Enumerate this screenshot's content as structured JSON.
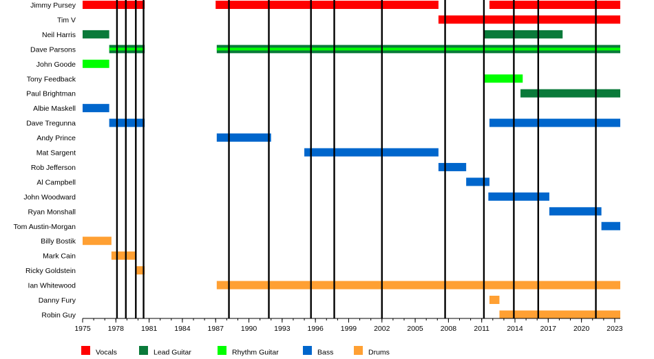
{
  "chart_data": {
    "type": "timeline",
    "title": "",
    "xlabel": "",
    "ylabel": "",
    "xlim": [
      1975,
      2023.5
    ],
    "x_ticks": [
      1975,
      1978,
      1981,
      1984,
      1987,
      1990,
      1993,
      1996,
      1999,
      2002,
      2005,
      2008,
      2011,
      2014,
      2017,
      2020,
      2023
    ],
    "grid": "vertical year lines only",
    "members": [
      "Jimmy Pursey",
      "Tim V",
      "Neil Harris",
      "Dave Parsons",
      "John Goode",
      "Tony Feedback",
      "Paul Brightman",
      "Albie Maskell",
      "Dave Tregunna",
      "Andy Prince",
      "Mat Sargent",
      "Rob Jefferson",
      "Al Campbell",
      "John Woodward",
      "Ryan Monshall",
      "Tom Austin-Morgan",
      "Billy Bostik",
      "Mark Cain",
      "Ricky Goldstein",
      "Ian Whitewood",
      "Danny Fury",
      "Robin Guy"
    ],
    "roles": [
      {
        "name": "Vocals",
        "color": "#ff0000"
      },
      {
        "name": "Lead Guitar",
        "color": "#0a7a3a"
      },
      {
        "name": "Rhythm Guitar",
        "color": "#00ff00"
      },
      {
        "name": "Bass",
        "color": "#0066cc"
      },
      {
        "name": "Drums",
        "color": "#ffa033"
      }
    ],
    "bars": [
      {
        "member": "Jimmy Pursey",
        "role": "Vocals",
        "start": 1975.0,
        "end": 1980.6
      },
      {
        "member": "Jimmy Pursey",
        "role": "Vocals",
        "start": 1987.0,
        "end": 2007.1
      },
      {
        "member": "Jimmy Pursey",
        "role": "Vocals",
        "start": 2011.7,
        "end": 2023.5
      },
      {
        "member": "Tim V",
        "role": "Vocals",
        "start": 2007.1,
        "end": 2023.5
      },
      {
        "member": "Neil Harris",
        "role": "Lead Guitar",
        "start": 1975.0,
        "end": 1977.4
      },
      {
        "member": "Neil Harris",
        "role": "Lead Guitar",
        "start": 2011.2,
        "end": 2018.3
      },
      {
        "member": "Dave Parsons",
        "role": "Lead Guitar",
        "start": 1977.4,
        "end": 1980.6
      },
      {
        "member": "Dave Parsons",
        "role": "Lead Guitar",
        "start": 1987.1,
        "end": 2023.5
      },
      {
        "member": "Dave Parsons",
        "role": "Rhythm Guitar",
        "start": 1977.4,
        "end": 1980.6
      },
      {
        "member": "Dave Parsons",
        "role": "Rhythm Guitar",
        "start": 1987.1,
        "end": 2023.5
      },
      {
        "member": "John Goode",
        "role": "Rhythm Guitar",
        "start": 1975.0,
        "end": 1977.4
      },
      {
        "member": "Tony Feedback",
        "role": "Rhythm Guitar",
        "start": 2011.2,
        "end": 2014.7
      },
      {
        "member": "Paul Brightman",
        "role": "Lead Guitar",
        "start": 2014.5,
        "end": 2023.5
      },
      {
        "member": "Albie Maskell",
        "role": "Bass",
        "start": 1975.0,
        "end": 1977.4
      },
      {
        "member": "Dave Tregunna",
        "role": "Bass",
        "start": 1977.4,
        "end": 1980.6
      },
      {
        "member": "Dave Tregunna",
        "role": "Bass",
        "start": 2011.7,
        "end": 2023.5
      },
      {
        "member": "Andy Prince",
        "role": "Bass",
        "start": 1987.1,
        "end": 1992.0
      },
      {
        "member": "Mat Sargent",
        "role": "Bass",
        "start": 1995.0,
        "end": 2007.1
      },
      {
        "member": "Rob Jefferson",
        "role": "Bass",
        "start": 2007.1,
        "end": 2009.6
      },
      {
        "member": "Al Campbell",
        "role": "Bass",
        "start": 2009.6,
        "end": 2011.7
      },
      {
        "member": "John Woodward",
        "role": "Bass",
        "start": 2011.6,
        "end": 2017.1
      },
      {
        "member": "Ryan Monshall",
        "role": "Bass",
        "start": 2017.1,
        "end": 2021.8
      },
      {
        "member": "Tom Austin-Morgan",
        "role": "Bass",
        "start": 2021.8,
        "end": 2023.5
      },
      {
        "member": "Billy Bostik",
        "role": "Drums",
        "start": 1975.0,
        "end": 1977.6
      },
      {
        "member": "Mark Cain",
        "role": "Drums",
        "start": 1977.6,
        "end": 1979.8
      },
      {
        "member": "Ricky Goldstein",
        "role": "Drums",
        "start": 1979.8,
        "end": 1980.6
      },
      {
        "member": "Ian Whitewood",
        "role": "Drums",
        "start": 1987.1,
        "end": 2023.5
      },
      {
        "member": "Danny Fury",
        "role": "Drums",
        "start": 2011.7,
        "end": 2012.6
      },
      {
        "member": "Robin Guy",
        "role": "Drums",
        "start": 2012.6,
        "end": 2023.5
      }
    ],
    "event_lines": [
      1978.1,
      1978.9,
      1979.8,
      1980.5,
      1988.2,
      1991.8,
      1995.6,
      1997.7,
      2002.0,
      2007.7,
      2011.2,
      2013.9,
      2016.1,
      2021.3
    ],
    "legend_placement": "bottom"
  }
}
